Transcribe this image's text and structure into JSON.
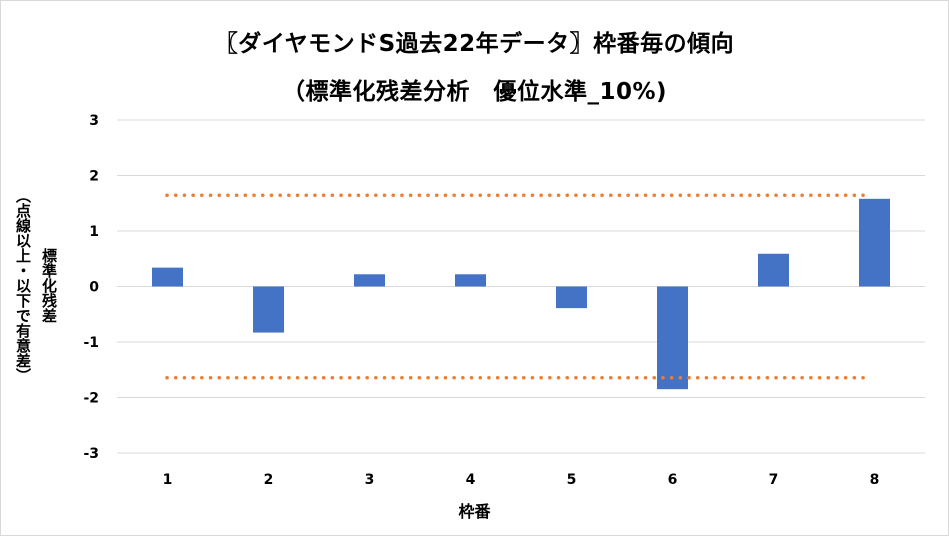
{
  "chart_data": {
    "type": "bar",
    "title_line1": "〖ダイヤモンドS過去22年データ〗枠番毎の傾向",
    "title_line2": "（標準化残差分析　優位水準_10%)",
    "xlabel": "枠番",
    "ylabel_line1": "標準化残差",
    "ylabel_line2": "（点線以上・以下で有意差）",
    "categories": [
      "1",
      "2",
      "3",
      "4",
      "5",
      "6",
      "7",
      "8"
    ],
    "values": [
      0.34,
      -0.83,
      0.22,
      0.22,
      -0.39,
      -1.85,
      0.59,
      1.58
    ],
    "ylim": [
      -3,
      3
    ],
    "yticks": [
      "3",
      "2",
      "1",
      "0",
      "-1",
      "-2",
      "-3"
    ],
    "threshold_upper": 1.645,
    "threshold_lower": -1.645,
    "grid": true,
    "legend": "none",
    "colors": {
      "bar": "#4472c4",
      "threshold": "#ed7d31",
      "grid": "#d9d9d9"
    }
  }
}
